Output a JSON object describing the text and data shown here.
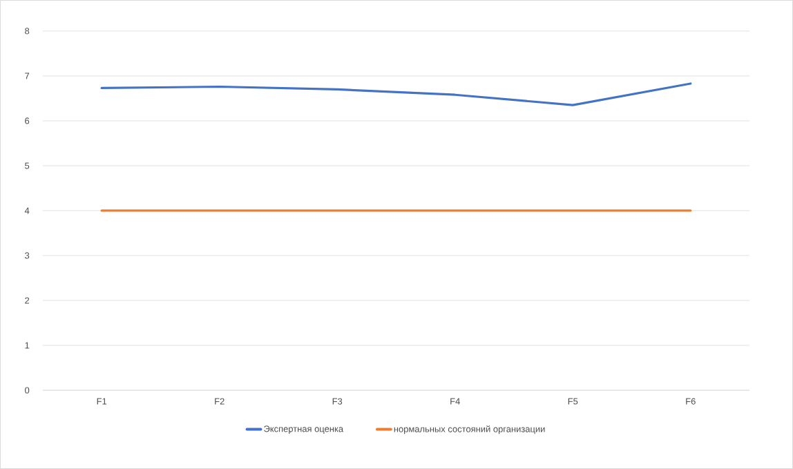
{
  "chart_data": {
    "type": "line",
    "categories": [
      "F1",
      "F2",
      "F3",
      "F4",
      "F5",
      "F6"
    ],
    "series": [
      {
        "name": "Экспертная оценка",
        "color": "#4472c4",
        "values": [
          6.73,
          6.76,
          6.7,
          6.58,
          6.35,
          6.83
        ]
      },
      {
        "name": "нормальных состояний организации",
        "color": "#ed7d31",
        "values": [
          4,
          4,
          4,
          4,
          4,
          4
        ]
      }
    ],
    "ylim": [
      0,
      8
    ],
    "yticks": [
      0,
      1,
      2,
      3,
      4,
      5,
      6,
      7,
      8
    ],
    "grid": "y",
    "legend": "bottom",
    "marker": "none",
    "line_style": "solid"
  }
}
